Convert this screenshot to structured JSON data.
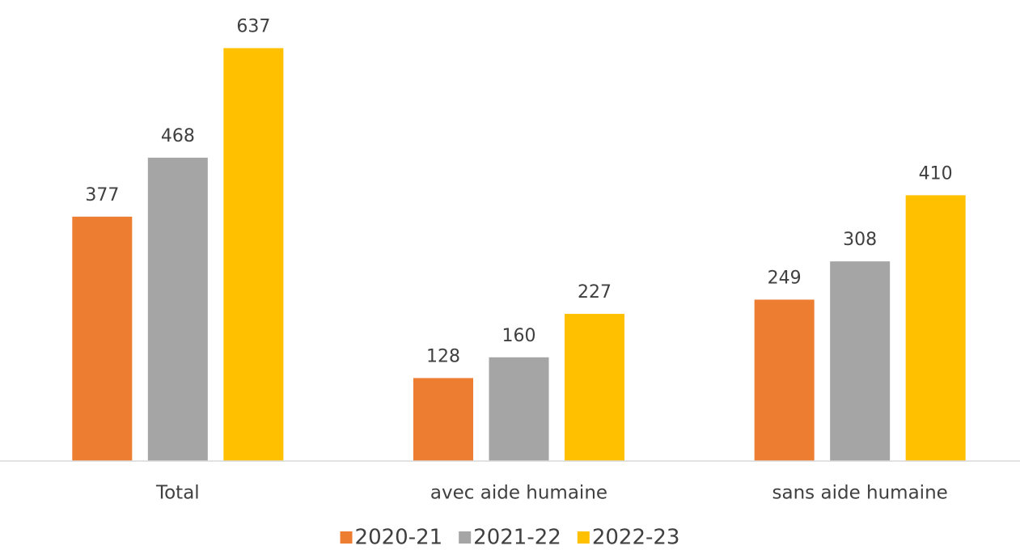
{
  "chart_data": {
    "type": "bar",
    "categories": [
      "Total",
      "avec aide humaine",
      "sans aide humaine"
    ],
    "series": [
      {
        "name": "2020-21",
        "color": "#ed7d31",
        "values": [
          377,
          128,
          249
        ]
      },
      {
        "name": "2021-22",
        "color": "#a5a5a5",
        "values": [
          468,
          160,
          308
        ]
      },
      {
        "name": "2022-23",
        "color": "#ffc000",
        "values": [
          637,
          227,
          410
        ]
      }
    ],
    "ylim": [
      0,
      700
    ]
  }
}
